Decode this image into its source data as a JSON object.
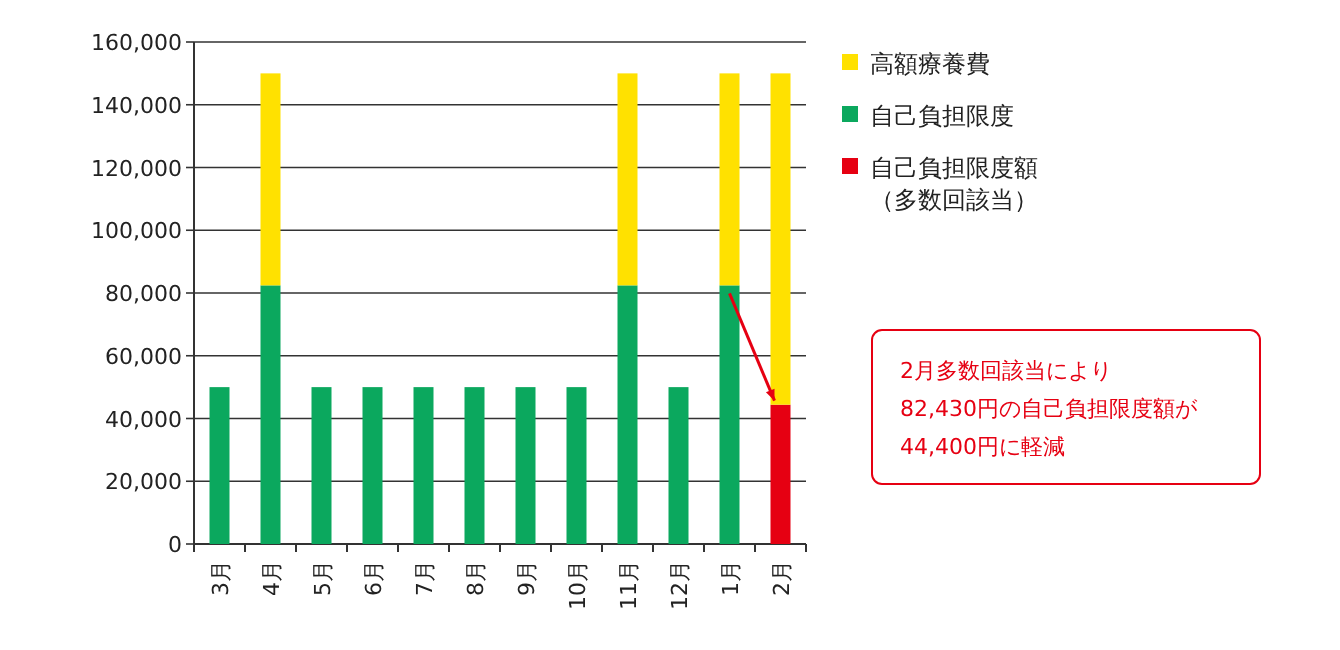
{
  "chart_data": {
    "type": "bar",
    "stacked": true,
    "categories": [
      "3月",
      "4月",
      "5月",
      "6月",
      "7月",
      "8月",
      "9月",
      "10月",
      "11月",
      "12月",
      "1月",
      "2月"
    ],
    "series": [
      {
        "name": "自己負担限度額（多数回該当）",
        "color": "#e60012",
        "values": [
          null,
          null,
          null,
          null,
          null,
          null,
          null,
          null,
          null,
          null,
          null,
          44400
        ]
      },
      {
        "name": "自己負担限度",
        "color": "#0ba85e",
        "values": [
          50000,
          82430,
          50000,
          50000,
          50000,
          50000,
          50000,
          50000,
          82430,
          50000,
          82430,
          null
        ]
      },
      {
        "name": "高額療養費",
        "color": "#ffe100",
        "values": [
          null,
          67570,
          null,
          null,
          null,
          null,
          null,
          null,
          67570,
          null,
          67570,
          105600
        ]
      }
    ],
    "ylim": [
      0,
      160000
    ],
    "yticks": [
      {
        "value": 0,
        "label": "0"
      },
      {
        "value": 20000,
        "label": "20,000"
      },
      {
        "value": 40000,
        "label": "40,000"
      },
      {
        "value": 60000,
        "label": "60,000"
      },
      {
        "value": 80000,
        "label": "80,000"
      },
      {
        "value": 100000,
        "label": "100,000"
      },
      {
        "value": 120000,
        "label": "120,000"
      },
      {
        "value": 140000,
        "label": "140,000"
      },
      {
        "value": 160000,
        "label": "160,000"
      }
    ],
    "grid": "y",
    "legend": "right",
    "annotations": [
      "2月多数回該当により\n82,430円の自己負担限度額が\n44,400円に軽減"
    ]
  }
}
